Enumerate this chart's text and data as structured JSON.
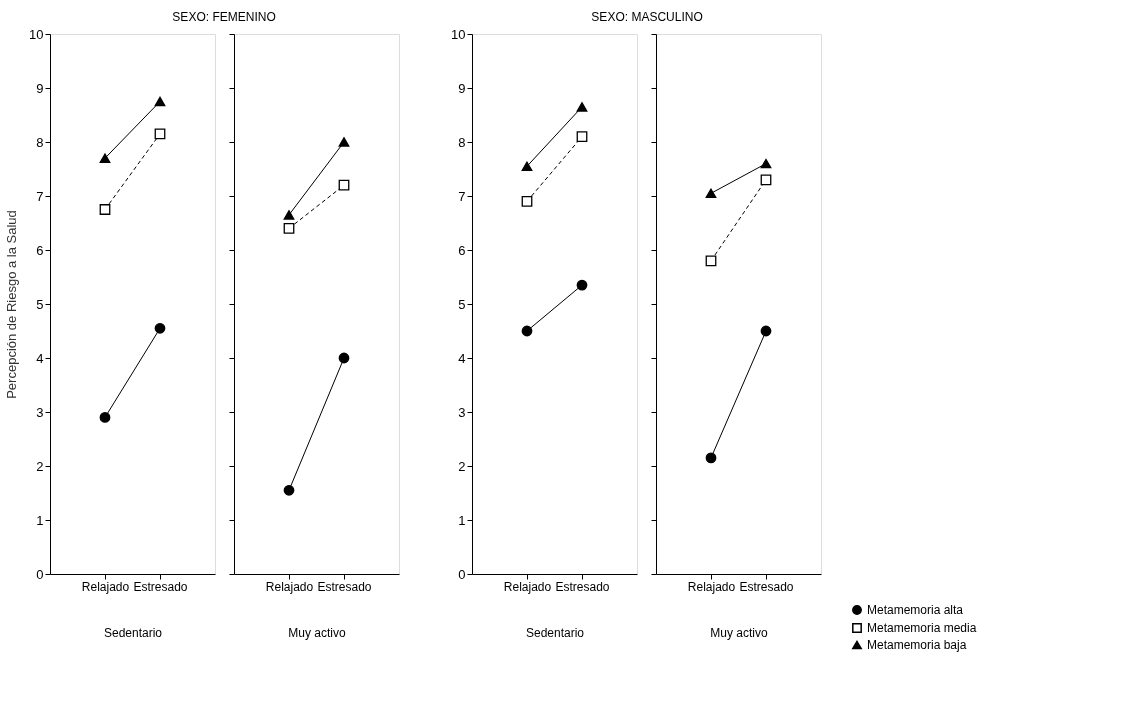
{
  "chart_data": [
    {
      "type": "line",
      "title": "SEXO: FEMENINO",
      "ylabel": "Percepción de Riesgo a la Salud",
      "xlabel": "Sedentario",
      "categories": [
        "Relajado",
        "Estresado"
      ],
      "ylim": [
        0,
        10
      ],
      "yticks": [
        0,
        1,
        2,
        3,
        4,
        5,
        6,
        7,
        8,
        9,
        10
      ],
      "grid": false,
      "legend": false,
      "series": [
        {
          "color": "#000000",
          "marker": "circle",
          "line_style": "solid",
          "values": [
            2.9,
            4.55
          ]
        },
        {
          "color": "#000000",
          "marker": "square",
          "line_style": "dashed",
          "values": [
            6.75,
            8.15
          ]
        },
        {
          "color": "#000000",
          "marker": "triangle",
          "line_style": "solid",
          "values": [
            7.7,
            8.75
          ]
        }
      ]
    },
    {
      "type": "line",
      "xlabel": "Muy activo",
      "categories": [
        "Relajado",
        "Estresado"
      ],
      "ylim": [
        0,
        10
      ],
      "yticks": [
        0,
        1,
        2,
        3,
        4,
        5,
        6,
        7,
        8,
        9,
        10
      ],
      "tick_labels": "x",
      "grid": false,
      "legend": false,
      "series": [
        {
          "color": "#000000",
          "marker": "circle",
          "line_style": "solid",
          "values": [
            1.55,
            4.0
          ]
        },
        {
          "color": "#000000",
          "marker": "square",
          "line_style": "dashed",
          "values": [
            6.4,
            7.2
          ]
        },
        {
          "color": "#000000",
          "marker": "triangle",
          "line_style": "solid",
          "values": [
            6.65,
            8.0
          ]
        }
      ]
    },
    {
      "type": "line",
      "title": "SEXO: MASCULINO",
      "xlabel": "Sedentario",
      "categories": [
        "Relajado",
        "Estresado"
      ],
      "ylim": [
        0,
        10
      ],
      "yticks": [
        0,
        1,
        2,
        3,
        4,
        5,
        6,
        7,
        8,
        9,
        10
      ],
      "grid": false,
      "legend": false,
      "series": [
        {
          "color": "#000000",
          "marker": "circle",
          "line_style": "solid",
          "values": [
            4.5,
            5.35
          ]
        },
        {
          "color": "#000000",
          "marker": "square",
          "line_style": "dashed",
          "values": [
            6.9,
            8.1
          ]
        },
        {
          "color": "#000000",
          "marker": "triangle",
          "line_style": "solid",
          "values": [
            7.55,
            8.65
          ]
        }
      ]
    },
    {
      "type": "line",
      "xlabel": "Muy activo",
      "categories": [
        "Relajado",
        "Estresado"
      ],
      "ylim": [
        0,
        10
      ],
      "yticks": [
        0,
        1,
        2,
        3,
        4,
        5,
        6,
        7,
        8,
        9,
        10
      ],
      "tick_labels": "x",
      "grid": false,
      "legend": "bottom right",
      "series": [
        {
          "name": "Metamemoria alta",
          "color": "#000000",
          "marker": "circle",
          "line_style": "solid",
          "values": [
            2.15,
            4.5
          ]
        },
        {
          "name": "Metamemoria media",
          "color": "#000000",
          "marker": "square",
          "line_style": "dashed",
          "values": [
            5.8,
            7.3
          ]
        },
        {
          "name": "Metamemoria baja",
          "color": "#000000",
          "marker": "triangle",
          "line_style": "solid",
          "values": [
            7.05,
            7.6
          ]
        }
      ]
    }
  ]
}
